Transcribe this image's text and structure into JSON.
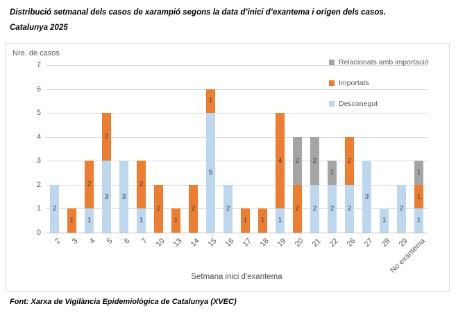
{
  "title": {
    "line1": "Distribució setmanal dels casos de xarampió segons la data d’inici d’exantema i origen dels casos.",
    "line2": "Catalunya 2025"
  },
  "footer": "Font: Xarxa de Vigilància Epidemiològica de Catalunya (XVEC)",
  "chart_data": {
    "type": "bar",
    "stacked": true,
    "title": "",
    "ylabel": "Nre. de casos",
    "xlabel": "Setmana inici d'exantema",
    "ylim": [
      0,
      7
    ],
    "ytick_step": 1,
    "grid": "horizontal",
    "legend_position": "top-right-inside",
    "data_labels": true,
    "categories": [
      "2",
      "3",
      "4",
      "5",
      "6",
      "7",
      "10",
      "13",
      "14",
      "15",
      "16",
      "17",
      "18",
      "19",
      "20",
      "21",
      "22",
      "26",
      "27",
      "28",
      "29",
      "No exantema"
    ],
    "series": [
      {
        "name": "Desconegut",
        "color": "#BDD7EE",
        "values": [
          2,
          0,
          1,
          3,
          3,
          1,
          0,
          0,
          0,
          5,
          2,
          0,
          0,
          1,
          0,
          2,
          2,
          2,
          3,
          1,
          2,
          1
        ]
      },
      {
        "name": "Importats",
        "color": "#ED7D31",
        "values": [
          0,
          1,
          2,
          2,
          0,
          2,
          2,
          1,
          2,
          1,
          0,
          1,
          1,
          4,
          2,
          0,
          0,
          2,
          0,
          0,
          0,
          1
        ]
      },
      {
        "name": "Relacionats amb importació",
        "color": "#A5A5A5",
        "values": [
          0,
          0,
          0,
          0,
          0,
          0,
          0,
          0,
          0,
          0,
          0,
          0,
          0,
          0,
          2,
          2,
          1,
          0,
          0,
          0,
          0,
          1
        ]
      }
    ],
    "legend": [
      {
        "label": "Relacionats amb importació",
        "color": "#A5A5A5"
      },
      {
        "label": "Importats",
        "color": "#ED7D31"
      },
      {
        "label": "Desconegut",
        "color": "#BDD7EE"
      }
    ],
    "colors": {
      "grid": "#D9D9D9",
      "axis_line": "#BFBFBF",
      "tick_text": "#595959",
      "data_label": "#404040",
      "frame_border": "#D9D9D9"
    }
  }
}
